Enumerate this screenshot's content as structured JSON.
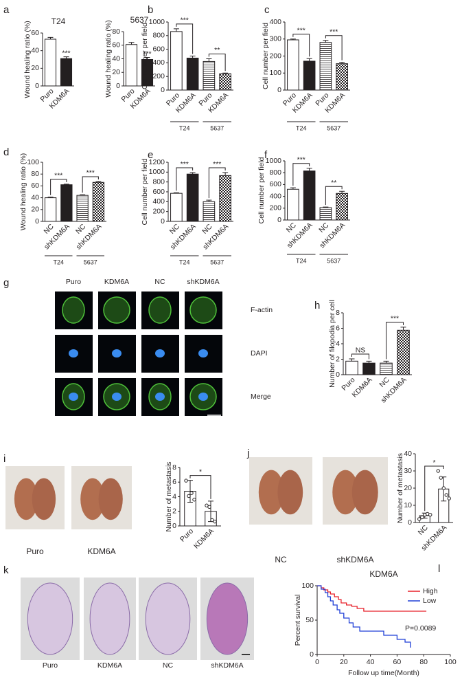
{
  "chart_data": [
    {
      "type": "bar",
      "panel": "a",
      "title": "T24",
      "y_label": "Wound healing ratio (%)",
      "categories": [
        "Puro",
        "KDM6A"
      ],
      "values": [
        53,
        31
      ],
      "errors": [
        2,
        2
      ],
      "fills": [
        "#ffffff",
        "#231f20"
      ],
      "ylim": [
        0,
        60
      ],
      "yticks": [
        0,
        20,
        40,
        60
      ],
      "annotations": [
        {
          "text": "***",
          "bars": [
            1
          ]
        }
      ]
    },
    {
      "type": "bar",
      "title": "5637",
      "y_label": "Wound healing ratio (%)",
      "categories": [
        "Puro",
        "KDM6A"
      ],
      "values": [
        61,
        39
      ],
      "errors": [
        3,
        3
      ],
      "fills": [
        "#ffffff",
        "#231f20"
      ],
      "ylim": [
        0,
        80
      ],
      "yticks": [
        0,
        20,
        40,
        60,
        80
      ],
      "annotations": [
        {
          "text": "***",
          "bars": [
            1
          ]
        }
      ]
    },
    {
      "type": "bar",
      "panel": "b",
      "y_label": "Cell number per field",
      "categories": [
        "Puro",
        "KDM6A",
        "Puro",
        "KDM6A"
      ],
      "values": [
        860,
        470,
        420,
        240
      ],
      "errors": [
        40,
        30,
        40,
        10
      ],
      "fills": [
        "#ffffff",
        "#231f20",
        "hlines",
        "checker"
      ],
      "groups": [
        "T24",
        "5637"
      ],
      "ylim": [
        0,
        1000
      ],
      "yticks": [
        0,
        200,
        400,
        600,
        800,
        1000
      ],
      "annotations": [
        {
          "text": "***",
          "bars": [
            0,
            1
          ]
        },
        {
          "text": "**",
          "bars": [
            2,
            3
          ]
        }
      ]
    },
    {
      "type": "bar",
      "panel": "c",
      "y_label": "Cell number per field",
      "categories": [
        "Puro",
        "KDM6A",
        "Puro",
        "KDM6A"
      ],
      "values": [
        295,
        170,
        280,
        155
      ],
      "errors": [
        5,
        15,
        12,
        8
      ],
      "fills": [
        "#ffffff",
        "#231f20",
        "hlines",
        "checker"
      ],
      "groups": [
        "T24",
        "5637"
      ],
      "ylim": [
        0,
        400
      ],
      "yticks": [
        0,
        100,
        200,
        300,
        400
      ],
      "annotations": [
        {
          "text": "***",
          "bars": [
            0,
            1
          ]
        },
        {
          "text": "***",
          "bars": [
            2,
            3
          ]
        }
      ]
    },
    {
      "type": "bar",
      "panel": "d",
      "y_label": "Wound healing ratio (%)",
      "categories": [
        "NC",
        "shKDM6A",
        "NC",
        "shKDM6A"
      ],
      "values": [
        40,
        62,
        44,
        66
      ],
      "errors": [
        1,
        1,
        1,
        1.5
      ],
      "fills": [
        "#ffffff",
        "#231f20",
        "hlines",
        "checker"
      ],
      "groups": [
        "T24",
        "5637"
      ],
      "ylim": [
        0,
        100
      ],
      "yticks": [
        0,
        20,
        40,
        60,
        80,
        100
      ],
      "annotations": [
        {
          "text": "***",
          "bars": [
            0,
            1
          ]
        },
        {
          "text": "***",
          "bars": [
            2,
            3
          ]
        }
      ]
    },
    {
      "type": "bar",
      "panel": "e",
      "y_label": "Cell number per field",
      "categories": [
        "NC",
        "shKDM6A",
        "NC",
        "shKDM6A"
      ],
      "values": [
        570,
        960,
        400,
        930
      ],
      "errors": [
        10,
        30,
        30,
        60
      ],
      "fills": [
        "#ffffff",
        "#231f20",
        "hlines",
        "checker"
      ],
      "groups": [
        "T24",
        "5637"
      ],
      "ylim": [
        0,
        1200
      ],
      "yticks": [
        0,
        200,
        400,
        600,
        800,
        1000,
        1200
      ],
      "annotations": [
        {
          "text": "***",
          "bars": [
            0,
            1
          ]
        },
        {
          "text": "***",
          "bars": [
            2,
            3
          ]
        }
      ]
    },
    {
      "type": "bar",
      "panel": "f",
      "y_label": "Cell number per field",
      "categories": [
        "NC",
        "shKDM6A",
        "NC",
        "shKDM6A"
      ],
      "values": [
        520,
        830,
        210,
        450
      ],
      "errors": [
        25,
        45,
        10,
        35
      ],
      "fills": [
        "#ffffff",
        "#231f20",
        "hlines",
        "checker"
      ],
      "groups": [
        "T24",
        "5637"
      ],
      "ylim": [
        0,
        1000
      ],
      "yticks": [
        0,
        200,
        400,
        600,
        800,
        1000
      ],
      "annotations": [
        {
          "text": "***",
          "bars": [
            0,
            1
          ]
        },
        {
          "text": "**",
          "bars": [
            2,
            3
          ]
        }
      ]
    },
    {
      "type": "bar",
      "panel": "h",
      "y_label": "Number of filopodia per cell",
      "categories": [
        "Puro",
        "KDM6A",
        "NC",
        "shKDM6A"
      ],
      "values": [
        1.75,
        1.5,
        1.5,
        5.75
      ],
      "errors": [
        0.3,
        0.25,
        0.25,
        0.4
      ],
      "fills": [
        "#ffffff",
        "#231f20",
        "hlines",
        "checker"
      ],
      "ylim": [
        0,
        8
      ],
      "yticks": [
        0,
        2,
        4,
        6,
        8
      ],
      "annotations": [
        {
          "text": "NS",
          "bars": [
            0,
            1
          ]
        },
        {
          "text": "***",
          "bars": [
            2,
            3
          ]
        }
      ]
    },
    {
      "type": "bar",
      "y_label": "Number of metastasis",
      "categories": [
        "Puro",
        "KDM6A"
      ],
      "values": [
        4.75,
        2
      ],
      "errors": [
        1.5,
        1.4
      ],
      "points": [
        [
          6.2,
          4.1,
          4.5,
          3.6
        ],
        [
          2.8,
          2.6,
          0.8,
          0.6
        ]
      ],
      "fills": [
        "#ffffff",
        "#ffffff"
      ],
      "ylim": [
        0,
        8
      ],
      "yticks": [
        0,
        2,
        4,
        6,
        8
      ],
      "annotations": [
        {
          "text": "*",
          "bars": [
            0,
            1
          ]
        }
      ]
    },
    {
      "type": "bar",
      "y_label": "Number of metastasis",
      "categories": [
        "NC",
        "shKDM6A"
      ],
      "values": [
        4,
        19.5
      ],
      "errors": [
        1.5,
        7
      ],
      "points": [
        [
          2,
          3,
          4.5,
          5,
          4.5
        ],
        [
          30,
          26,
          20,
          16,
          14
        ]
      ],
      "fills": [
        "#ffffff",
        "#ffffff"
      ],
      "ylim": [
        0,
        40
      ],
      "yticks": [
        0,
        10,
        20,
        30,
        40
      ],
      "annotations": [
        {
          "text": "*",
          "bars": [
            0,
            1
          ]
        }
      ]
    },
    {
      "type": "line",
      "panel": "l",
      "title": "KDM6A",
      "step": true,
      "y_label": "Percent survival",
      "x_label": "Follow up time(Month)",
      "xlim": [
        0,
        100
      ],
      "xticks": [
        0,
        20,
        40,
        60,
        80,
        100
      ],
      "ylim": [
        0,
        100
      ],
      "yticks": [
        0,
        50,
        100
      ],
      "legend": "upper right",
      "series": [
        {
          "name": "High",
          "color": "#e8202a",
          "x": [
            0,
            3,
            5,
            8,
            10,
            13,
            16,
            18,
            22,
            26,
            30,
            35,
            82
          ],
          "values": [
            100,
            97,
            94,
            91,
            88,
            84,
            80,
            75,
            72,
            70,
            67,
            63,
            63
          ]
        },
        {
          "name": "Low",
          "color": "#1f3fd6",
          "x": [
            0,
            3,
            6,
            8,
            10,
            12,
            15,
            17,
            20,
            24,
            27,
            32,
            40,
            50,
            60,
            66,
            70
          ],
          "values": [
            100,
            95,
            90,
            84,
            78,
            72,
            65,
            60,
            53,
            46,
            40,
            34,
            34,
            28,
            22,
            18,
            10
          ]
        }
      ],
      "annotations": [
        {
          "text": "P=0.0089"
        }
      ]
    }
  ],
  "image_panels": [
    {
      "panel": "g",
      "columns": [
        "Puro",
        "KDM6A",
        "NC",
        "shKDM6A"
      ],
      "rows": [
        "F-actin",
        "DAPI",
        "Merge"
      ]
    },
    {
      "panel": "i",
      "labels": [
        "Puro",
        "KDM6A"
      ]
    },
    {
      "panel": "j",
      "labels": [
        "NC",
        "shKDM6A"
      ]
    },
    {
      "panel": "k",
      "labels": [
        "Puro",
        "KDM6A",
        "NC",
        "shKDM6A"
      ]
    }
  ]
}
